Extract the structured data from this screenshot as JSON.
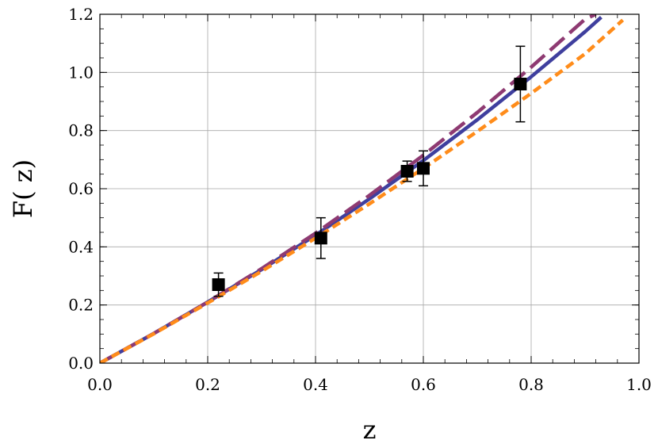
{
  "chart_data": {
    "type": "line",
    "xlabel": "z",
    "ylabel": "F( z)",
    "xlim": [
      0.0,
      1.0
    ],
    "ylim": [
      0.0,
      1.2
    ],
    "xticks": [
      "0.0",
      "0.2",
      "0.4",
      "0.6",
      "0.8",
      "1.0"
    ],
    "yticks": [
      "0.0",
      "0.2",
      "0.4",
      "0.6",
      "0.8",
      "1.0",
      "1.2"
    ],
    "grid": true,
    "series": [
      {
        "style": "solid",
        "color": "#3f3f9e",
        "x": [
          0,
          0.1,
          0.2,
          0.3,
          0.4,
          0.5,
          0.6,
          0.7,
          0.8,
          0.9,
          0.93
        ],
        "y": [
          0,
          0.102,
          0.21,
          0.322,
          0.44,
          0.565,
          0.697,
          0.837,
          0.985,
          1.14,
          1.19
        ]
      },
      {
        "style": "long-dash",
        "color": "#8e3a72",
        "x": [
          0,
          0.1,
          0.2,
          0.3,
          0.4,
          0.5,
          0.6,
          0.7,
          0.8,
          0.9,
          0.92
        ],
        "y": [
          0,
          0.102,
          0.21,
          0.325,
          0.447,
          0.577,
          0.715,
          0.862,
          1.018,
          1.183,
          1.2
        ]
      },
      {
        "style": "short-dash",
        "color": "#ff8c1a",
        "x": [
          0,
          0.1,
          0.2,
          0.3,
          0.4,
          0.5,
          0.6,
          0.7,
          0.8,
          0.9,
          0.97
        ],
        "y": [
          0,
          0.101,
          0.207,
          0.316,
          0.43,
          0.548,
          0.67,
          0.797,
          0.928,
          1.064,
          1.18
        ]
      }
    ],
    "points": {
      "color": "#000000",
      "x": [
        0.22,
        0.41,
        0.57,
        0.6,
        0.78
      ],
      "y": [
        0.27,
        0.43,
        0.66,
        0.67,
        0.96
      ],
      "err": [
        0.04,
        0.07,
        0.035,
        0.06,
        0.13
      ]
    }
  }
}
